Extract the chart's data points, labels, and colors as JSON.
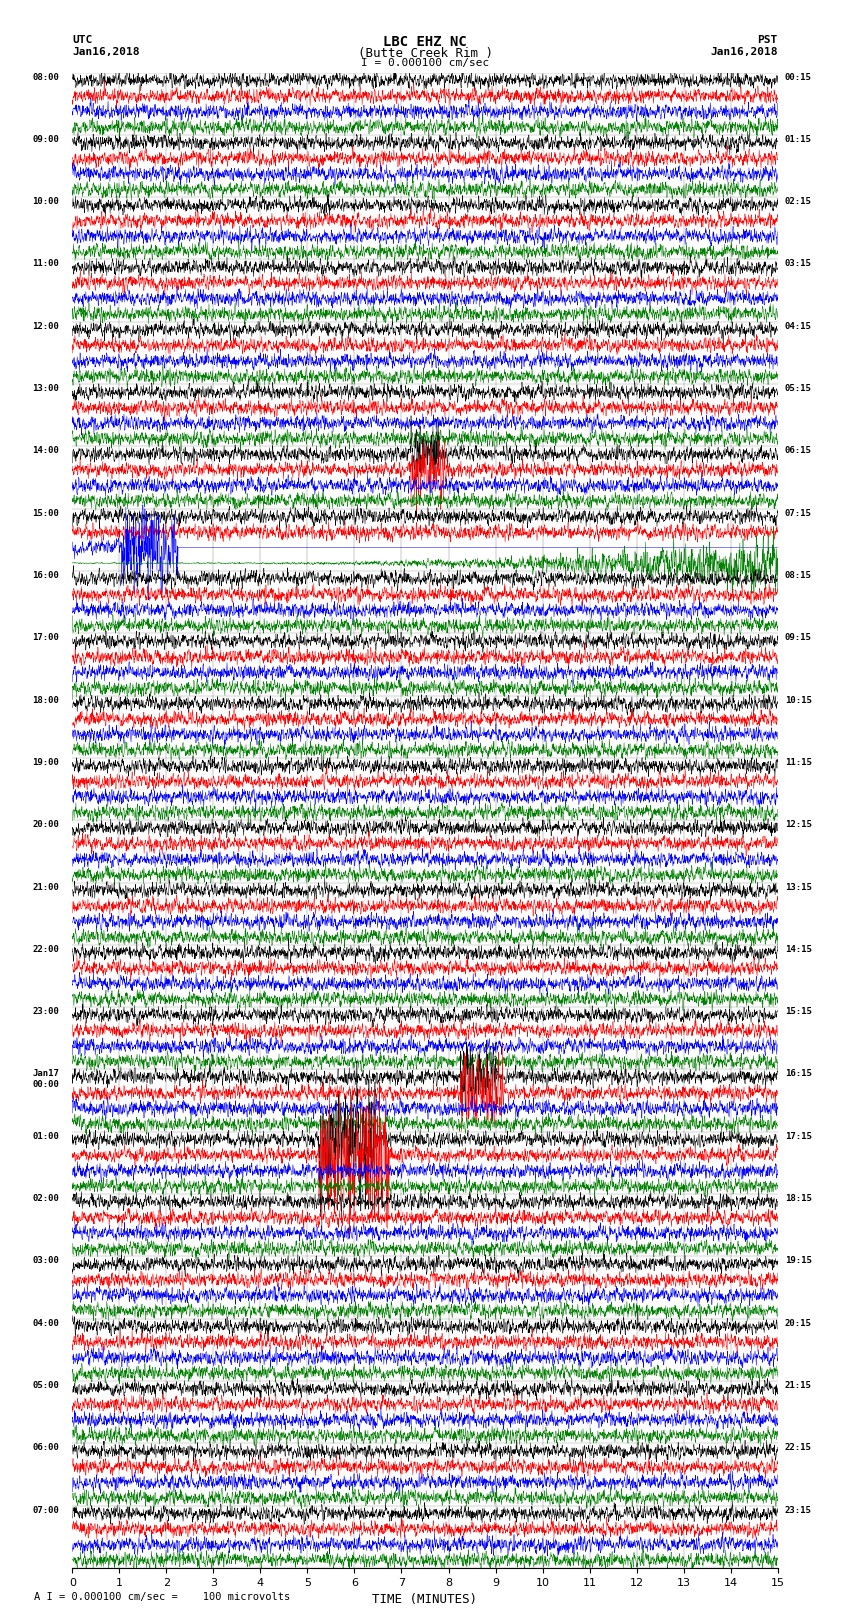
{
  "title_line1": "LBC EHZ NC",
  "title_line2": "(Butte Creek Rim )",
  "scale_label": "I = 0.000100 cm/sec",
  "bottom_label": "A I = 0.000100 cm/sec =    100 microvolts",
  "xlabel": "TIME (MINUTES)",
  "left_times": [
    "08:00",
    "09:00",
    "10:00",
    "11:00",
    "12:00",
    "13:00",
    "14:00",
    "15:00",
    "16:00",
    "17:00",
    "18:00",
    "19:00",
    "20:00",
    "21:00",
    "22:00",
    "23:00",
    "Jan17\n00:00",
    "01:00",
    "02:00",
    "03:00",
    "04:00",
    "05:00",
    "06:00",
    "07:00"
  ],
  "right_times": [
    "00:15",
    "01:15",
    "02:15",
    "03:15",
    "04:15",
    "05:15",
    "06:15",
    "07:15",
    "08:15",
    "09:15",
    "10:15",
    "11:15",
    "12:15",
    "13:15",
    "14:15",
    "15:15",
    "16:15",
    "17:15",
    "18:15",
    "19:15",
    "20:15",
    "21:15",
    "22:15",
    "23:15"
  ],
  "colors": [
    "black",
    "red",
    "blue",
    "green"
  ],
  "n_rows": 24,
  "traces_per_row": 4,
  "fig_width": 8.5,
  "fig_height": 16.13,
  "bg_color": "white",
  "xmin": 0,
  "xmax": 15,
  "xticks": [
    0,
    1,
    2,
    3,
    4,
    5,
    6,
    7,
    8,
    9,
    10,
    11,
    12,
    13,
    14,
    15
  ],
  "noise_seed": 7,
  "lw": 0.35
}
